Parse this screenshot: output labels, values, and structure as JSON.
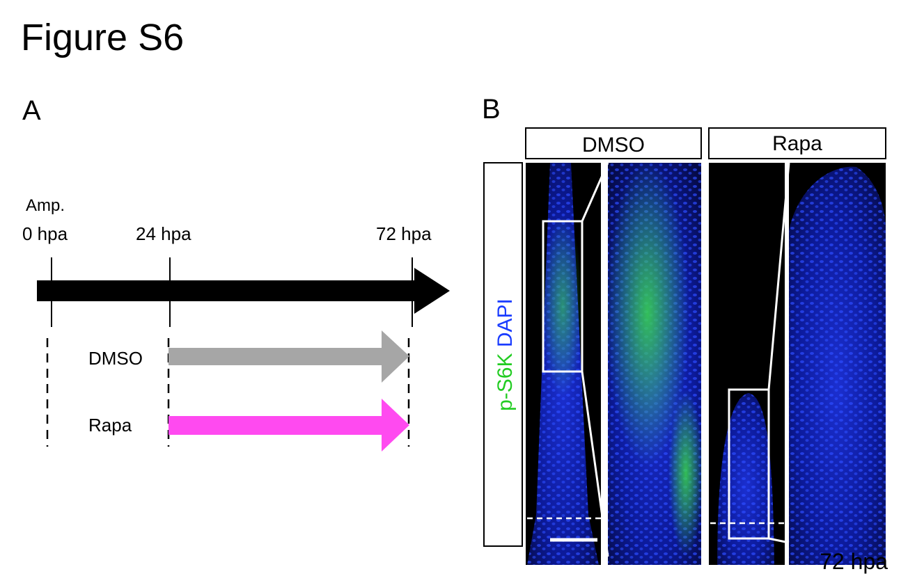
{
  "header": {
    "title": "Figure S6"
  },
  "panel_a": {
    "label": "A",
    "timeline": {
      "event": "Amp.",
      "times": [
        "0 hpa",
        "24 hpa",
        "72 hpa"
      ]
    },
    "treatments": [
      "DMSO",
      "Rapa"
    ]
  },
  "panel_b": {
    "label": "B",
    "columns": [
      "DMSO",
      "Rapa"
    ],
    "row_label": {
      "stain1": "p-S6K",
      "stain2": "DAPI"
    },
    "time": "72 hpa"
  }
}
